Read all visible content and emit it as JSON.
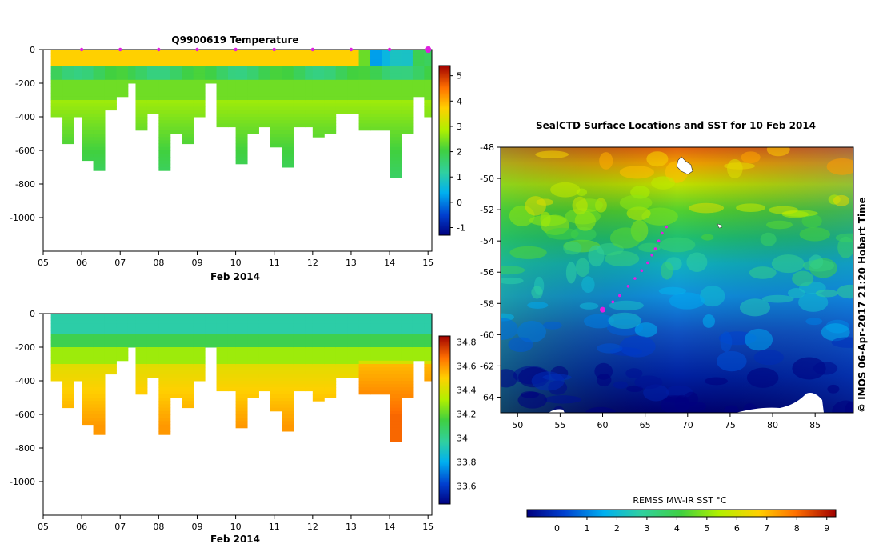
{
  "chart_data": [
    {
      "type": "heatmap",
      "title": "Q9900619  Temperature",
      "xlabel": "Feb 2014",
      "ylabel": "",
      "x_ticks": [
        "05",
        "06",
        "07",
        "08",
        "09",
        "10",
        "11",
        "12",
        "13",
        "14",
        "15"
      ],
      "y_ticks": [
        "0",
        "-200",
        "-400",
        "-600",
        "-800",
        "-1000"
      ],
      "xlim": [
        5,
        15.1
      ],
      "ylim": [
        -1200,
        0
      ],
      "variable": "temperature",
      "profile_marker_days": [
        6,
        7,
        8,
        9,
        10,
        11,
        12,
        13,
        14,
        15
      ],
      "colorbar": {
        "range": [
          -1.3,
          5.4
        ],
        "ticks": [
          "-1",
          "0",
          "1",
          "2",
          "3",
          "4",
          "5"
        ]
      },
      "profiles": [
        {
          "day": 5.2,
          "max_depth": 400
        },
        {
          "day": 5.5,
          "max_depth": 560
        },
        {
          "day": 5.8,
          "max_depth": 400
        },
        {
          "day": 6.0,
          "max_depth": 660
        },
        {
          "day": 6.3,
          "max_depth": 720
        },
        {
          "day": 6.6,
          "max_depth": 350
        },
        {
          "day": 6.9,
          "max_depth": 280
        },
        {
          "day": 7.2,
          "max_depth": 200
        },
        {
          "day": 7.4,
          "max_depth": 470
        },
        {
          "day": 7.7,
          "max_depth": 380
        },
        {
          "day": 8.0,
          "max_depth": 710
        },
        {
          "day": 8.3,
          "max_depth": 490
        },
        {
          "day": 8.6,
          "max_depth": 550
        },
        {
          "day": 8.9,
          "max_depth": 400
        },
        {
          "day": 9.2,
          "max_depth": 200
        },
        {
          "day": 9.5,
          "max_depth": 450
        },
        {
          "day": 9.8,
          "max_depth": 450
        },
        {
          "day": 10.0,
          "max_depth": 670
        },
        {
          "day": 10.3,
          "max_depth": 500
        },
        {
          "day": 10.6,
          "max_depth": 450
        },
        {
          "day": 10.9,
          "max_depth": 580
        },
        {
          "day": 11.2,
          "max_depth": 700
        },
        {
          "day": 11.5,
          "max_depth": 450
        },
        {
          "day": 11.8,
          "max_depth": 450
        },
        {
          "day": 12.0,
          "max_depth": 520
        },
        {
          "day": 12.3,
          "max_depth": 500
        },
        {
          "day": 12.6,
          "max_depth": 380
        },
        {
          "day": 12.9,
          "max_depth": 380
        },
        {
          "day": 13.2,
          "max_depth": 470
        },
        {
          "day": 13.5,
          "max_depth": 470
        },
        {
          "day": 13.8,
          "max_depth": 470
        },
        {
          "day": 14.0,
          "max_depth": 760
        },
        {
          "day": 14.3,
          "max_depth": 500
        },
        {
          "day": 14.6,
          "max_depth": 270
        },
        {
          "day": 14.9,
          "max_depth": 400
        }
      ]
    },
    {
      "type": "heatmap",
      "title": "",
      "xlabel": "Feb 2014",
      "ylabel": "",
      "x_ticks": [
        "05",
        "06",
        "07",
        "08",
        "09",
        "10",
        "11",
        "12",
        "13",
        "14",
        "15"
      ],
      "y_ticks": [
        "0",
        "-200",
        "-400",
        "-600",
        "-800",
        "-1000"
      ],
      "xlim": [
        5,
        15.1
      ],
      "ylim": [
        -1200,
        0
      ],
      "variable": "salinity",
      "colorbar": {
        "range": [
          33.45,
          34.85
        ],
        "ticks": [
          "34.8",
          "34.6",
          "34.4",
          "34.2",
          "34",
          "33.8",
          "33.6"
        ]
      },
      "profiles_same_as_above": true
    },
    {
      "type": "heatmap",
      "title": "SealCTD Surface Locations and SST for 10 Feb 2014",
      "xlabel": "",
      "ylabel": "",
      "x_ticks": [
        "50",
        "55",
        "60",
        "65",
        "70",
        "75",
        "80",
        "85"
      ],
      "y_ticks": [
        "-48",
        "-50",
        "-52",
        "-54",
        "-56",
        "-58",
        "-60",
        "-62",
        "-64"
      ],
      "xlim": [
        48,
        89.5
      ],
      "ylim": [
        -65,
        -48
      ],
      "colorbar_label": "REMSS MW-IR SST °C",
      "colorbar_ticks": [
        "0",
        "1",
        "2",
        "3",
        "4",
        "5",
        "6",
        "7",
        "8",
        "9"
      ],
      "colorbar_range": [
        -1,
        9.3
      ],
      "seal_track": [
        {
          "lon": 67.5,
          "lat": -53.1
        },
        {
          "lon": 67.0,
          "lat": -53.5
        },
        {
          "lon": 66.6,
          "lat": -54.0
        },
        {
          "lon": 66.2,
          "lat": -54.5
        },
        {
          "lon": 65.8,
          "lat": -54.9
        },
        {
          "lon": 65.3,
          "lat": -55.4
        },
        {
          "lon": 64.6,
          "lat": -55.9
        },
        {
          "lon": 63.8,
          "lat": -56.4
        },
        {
          "lon": 63.0,
          "lat": -56.9
        },
        {
          "lon": 62.0,
          "lat": -57.5
        },
        {
          "lon": 61.2,
          "lat": -57.9
        }
      ],
      "latest_location": {
        "lon": 60.0,
        "lat": -58.4
      },
      "credit": "©  IMOS 06-Apr-2017 21:20 Hobart Time"
    }
  ]
}
